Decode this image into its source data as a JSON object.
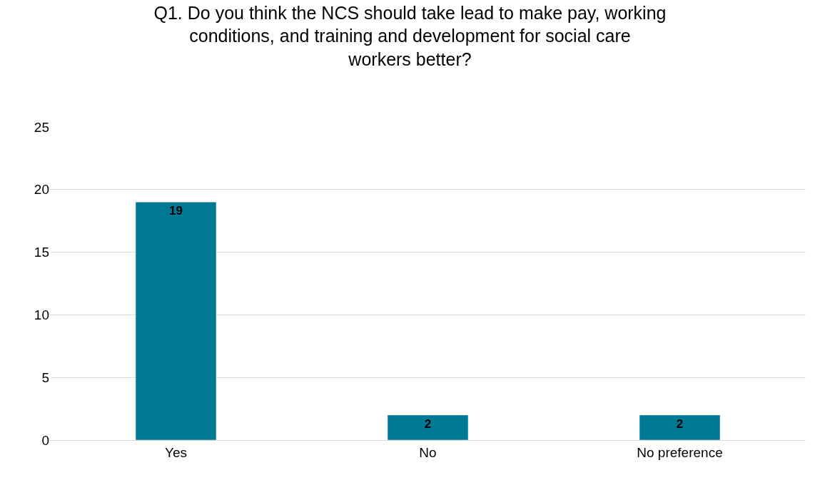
{
  "chart_data": {
    "type": "bar",
    "title": "Q1. Do you think the NCS should take lead to make pay, working conditions, and training and development for social care workers better?",
    "categories": [
      "Yes",
      "No",
      "No preference"
    ],
    "values": [
      19,
      2,
      2
    ],
    "color": "#007a94",
    "ylim": [
      0,
      25
    ],
    "yticks": [
      0,
      5,
      10,
      15,
      20,
      25
    ],
    "grid": "y",
    "data_labels": true,
    "legend": false
  }
}
